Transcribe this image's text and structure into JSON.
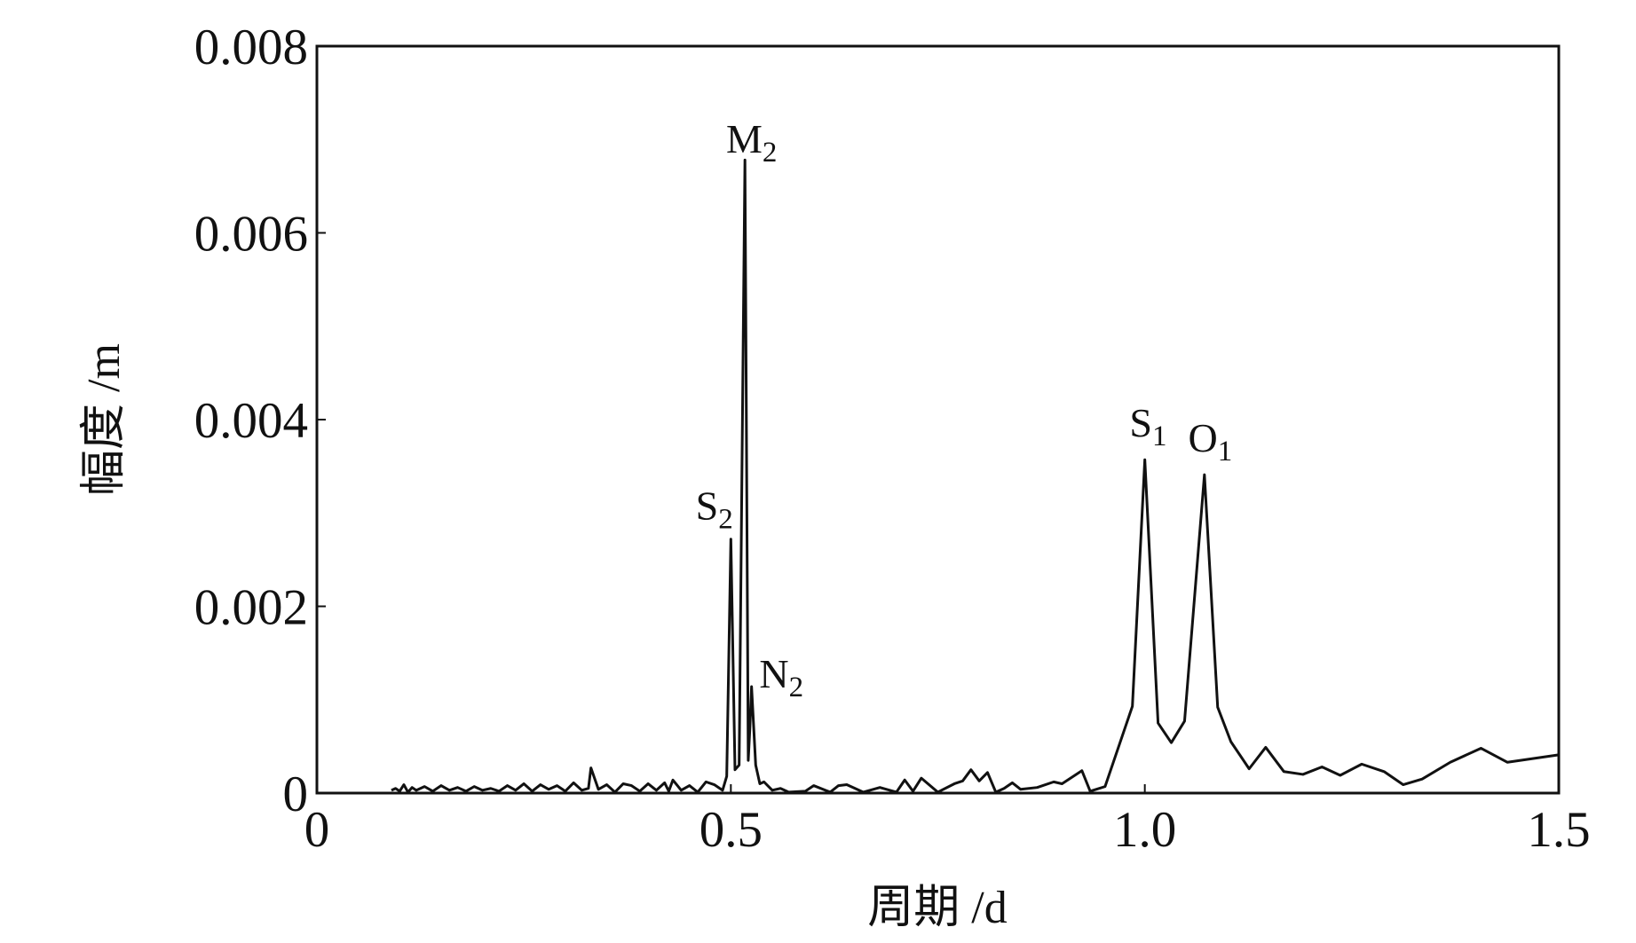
{
  "chart_data": {
    "type": "line",
    "x_label": "周期 /d",
    "y_label": "幅度 /m",
    "color": "#111111",
    "xlim": [
      0,
      1.5
    ],
    "ylim": [
      0,
      0.008
    ],
    "xticks": [
      0,
      0.5,
      {
        "value": 1,
        "label": "1.0"
      },
      1.5
    ],
    "yticks": [
      0,
      0.002,
      0.004,
      0.006,
      0.008
    ],
    "x": [
      0.09,
      0.095,
      0.1,
      0.105,
      0.11,
      0.115,
      0.12,
      0.13,
      0.14,
      0.15,
      0.16,
      0.17,
      0.18,
      0.19,
      0.2,
      0.21,
      0.22,
      0.23,
      0.24,
      0.25,
      0.26,
      0.27,
      0.28,
      0.29,
      0.3,
      0.31,
      0.32,
      0.328,
      0.331,
      0.34,
      0.35,
      0.36,
      0.37,
      0.38,
      0.39,
      0.4,
      0.41,
      0.42,
      0.425,
      0.43,
      0.44,
      0.45,
      0.46,
      0.47,
      0.48,
      0.49,
      0.495,
      0.5,
      0.505,
      0.51,
      0.517,
      0.521,
      0.523,
      0.525,
      0.53,
      0.535,
      0.54,
      0.55,
      0.56,
      0.57,
      0.59,
      0.6,
      0.62,
      0.63,
      0.64,
      0.66,
      0.68,
      0.7,
      0.71,
      0.72,
      0.73,
      0.75,
      0.77,
      0.78,
      0.79,
      0.8,
      0.81,
      0.82,
      0.83,
      0.84,
      0.85,
      0.87,
      0.89,
      0.9,
      0.924,
      0.934,
      0.952,
      0.985,
      1.0,
      1.016,
      1.032,
      1.048,
      1.072,
      1.088,
      1.104,
      1.126,
      1.146,
      1.168,
      1.191,
      1.214,
      1.236,
      1.262,
      1.289,
      1.312,
      1.335,
      1.369,
      1.406,
      1.438,
      1.5
    ],
    "values": [
      3e-05,
      5e-05,
      2e-05,
      9e-05,
      1e-05,
      6e-05,
      3e-05,
      7e-05,
      2e-05,
      8e-05,
      3e-05,
      6e-05,
      2e-05,
      7e-05,
      3e-05,
      5e-05,
      2e-05,
      8e-05,
      3e-05,
      0.0001,
      2e-05,
      9e-05,
      4e-05,
      8e-05,
      2e-05,
      0.00011,
      3e-05,
      5e-05,
      0.00027,
      4e-05,
      9e-05,
      1e-05,
      0.0001,
      8e-05,
      2e-05,
      0.0001,
      3e-05,
      0.00011,
      2e-05,
      0.00014,
      3e-05,
      8e-05,
      1e-05,
      0.00012,
      9e-05,
      3e-05,
      0.00018,
      0.00272,
      0.00025,
      0.0003,
      0.00678,
      0.00035,
      0.0007,
      0.00114,
      0.0003,
      0.0001,
      0.00012,
      3e-05,
      5e-05,
      1e-05,
      2e-05,
      8e-05,
      1e-05,
      8e-05,
      9e-05,
      1e-05,
      6e-05,
      1e-05,
      0.00014,
      2e-05,
      0.00016,
      1e-05,
      0.0001,
      0.00013,
      0.00025,
      0.00013,
      0.00022,
      1e-05,
      5e-05,
      0.00011,
      4e-05,
      6e-05,
      0.00012,
      0.0001,
      0.00024,
      2e-05,
      7e-05,
      0.00093,
      0.00357,
      0.00075,
      0.00054,
      0.00077,
      0.00341,
      0.00092,
      0.00055,
      0.00026,
      0.00049,
      0.00023,
      0.0002,
      0.00028,
      0.00019,
      0.00031,
      0.00023,
      9e-05,
      0.00015,
      0.00033,
      0.00048,
      0.00033,
      0.00041
    ],
    "annotations": [
      {
        "text": "M",
        "subscript": "2",
        "x": 0.525,
        "y": 0.00686
      },
      {
        "text": "S",
        "subscript": "2",
        "x": 0.48,
        "y": 0.00293
      },
      {
        "text": "N",
        "subscript": "2",
        "x": 0.561,
        "y": 0.00113
      },
      {
        "text": "S",
        "subscript": "1",
        "x": 1.004,
        "y": 0.00382
      },
      {
        "text": "O",
        "subscript": "1",
        "x": 1.079,
        "y": 0.00366
      }
    ]
  }
}
